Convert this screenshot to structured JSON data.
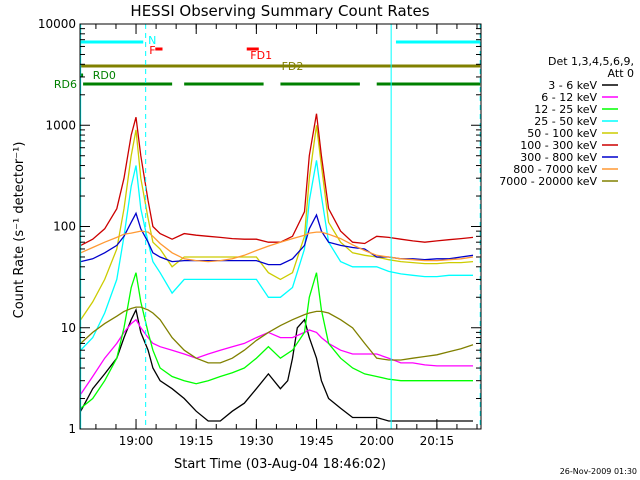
{
  "chart_data": {
    "type": "line",
    "title": "HESSI Observing Summary Count Rates",
    "xlabel": "Start Time (03-Aug-04 18:46:02)",
    "ylabel": "Count Rate (s⁻¹ detector⁻¹)",
    "footer": "26-Nov-2009 01:30",
    "yscale": "log",
    "ylim": [
      1,
      10000
    ],
    "xlim": [
      18.7672,
      20.4333
    ],
    "xtick_values": [
      19.0,
      19.25,
      19.5,
      19.75,
      20.0,
      20.25
    ],
    "x_ticks": [
      "19:00",
      "19:15",
      "19:30",
      "19:45",
      "20:00",
      "20:15"
    ],
    "y_tick_values": [
      1,
      10,
      100,
      1000,
      10000
    ],
    "y_ticks": [
      "1",
      "10",
      "100",
      "1000",
      "10000"
    ],
    "legend": {
      "header": [
        "Det 1,3,4,5,6,9,",
        "Att 0"
      ],
      "position": "top-right outside"
    },
    "series": [
      {
        "name": "3 - 6 keV",
        "color": "#000000",
        "x": [
          18.77,
          18.82,
          18.87,
          18.92,
          18.95,
          18.98,
          19.0,
          19.02,
          19.05,
          19.07,
          19.1,
          19.15,
          19.2,
          19.25,
          19.3,
          19.35,
          19.4,
          19.45,
          19.5,
          19.55,
          19.6,
          19.63,
          19.65,
          19.67,
          19.7,
          19.72,
          19.75,
          19.77,
          19.8,
          19.85,
          19.9,
          19.95,
          20.0,
          20.05,
          20.1,
          20.15,
          20.2,
          20.25,
          20.3,
          20.35,
          20.4
        ],
        "y": [
          1.5,
          2.5,
          3.5,
          5,
          8,
          12,
          15,
          9,
          6,
          4,
          3,
          2.5,
          2,
          1.5,
          1.2,
          1.2,
          1.5,
          1.8,
          2.5,
          3.5,
          2.5,
          3,
          5,
          10,
          12,
          8,
          5,
          3,
          2,
          1.6,
          1.3,
          1.3,
          1.3,
          1.2,
          1.2,
          1.2,
          1.2,
          1.2,
          1.2,
          1.2,
          1.2
        ]
      },
      {
        "name": "6 - 12 keV",
        "color": "#ff00ff",
        "x": [
          18.77,
          18.82,
          18.87,
          18.92,
          18.95,
          18.98,
          19.0,
          19.02,
          19.05,
          19.07,
          19.1,
          19.15,
          19.2,
          19.25,
          19.3,
          19.35,
          19.4,
          19.45,
          19.5,
          19.55,
          19.6,
          19.65,
          19.7,
          19.72,
          19.75,
          19.77,
          19.8,
          19.85,
          19.9,
          19.95,
          20.0,
          20.05,
          20.1,
          20.15,
          20.2,
          20.25,
          20.3,
          20.35,
          20.4
        ],
        "y": [
          2.2,
          3.3,
          5,
          7,
          9,
          11,
          12,
          10,
          8,
          7,
          6.5,
          6,
          5.5,
          5,
          5.5,
          6,
          6.5,
          7,
          8,
          9,
          8,
          8,
          9,
          9.5,
          9,
          8,
          7,
          6,
          5.5,
          5.5,
          5.5,
          5,
          4.5,
          4.5,
          4.3,
          4.2,
          4.2,
          4.2,
          4.2
        ]
      },
      {
        "name": "12 - 25 keV",
        "color": "#00ff00",
        "x": [
          18.77,
          18.82,
          18.87,
          18.92,
          18.95,
          18.98,
          19.0,
          19.02,
          19.05,
          19.07,
          19.1,
          19.15,
          19.2,
          19.25,
          19.3,
          19.35,
          19.4,
          19.45,
          19.5,
          19.55,
          19.6,
          19.65,
          19.7,
          19.72,
          19.75,
          19.77,
          19.8,
          19.85,
          19.9,
          19.95,
          20.0,
          20.05,
          20.1,
          20.15,
          20.2,
          20.25,
          20.3,
          20.35,
          20.4
        ],
        "y": [
          1.6,
          2,
          3,
          5,
          10,
          25,
          35,
          18,
          9,
          6,
          4,
          3.3,
          3,
          2.8,
          3,
          3.3,
          3.6,
          4,
          5,
          6.5,
          5,
          6,
          9,
          20,
          35,
          15,
          7,
          5,
          4,
          3.5,
          3.3,
          3.1,
          3,
          3,
          3,
          3,
          3,
          3,
          3
        ]
      },
      {
        "name": "25 - 50 keV",
        "color": "#00ffff",
        "x": [
          18.77,
          18.82,
          18.87,
          18.92,
          18.95,
          18.98,
          19.0,
          19.02,
          19.05,
          19.07,
          19.1,
          19.15,
          19.2,
          19.25,
          19.3,
          19.35,
          19.4,
          19.45,
          19.5,
          19.55,
          19.6,
          19.65,
          19.7,
          19.72,
          19.75,
          19.77,
          19.8,
          19.85,
          19.9,
          19.95,
          20.0,
          20.05,
          20.1,
          20.15,
          20.2,
          20.25,
          20.3,
          20.35,
          20.4
        ],
        "y": [
          6,
          8,
          14,
          30,
          80,
          250,
          400,
          150,
          70,
          45,
          35,
          22,
          30,
          30,
          30,
          30,
          30,
          30,
          30,
          20,
          20,
          25,
          60,
          180,
          450,
          200,
          70,
          45,
          40,
          40,
          40,
          36,
          34,
          33,
          32,
          32,
          33,
          33,
          33
        ]
      },
      {
        "name": "50 - 100 keV",
        "color": "#cccc00",
        "x": [
          18.77,
          18.82,
          18.87,
          18.92,
          18.95,
          18.98,
          19.0,
          19.02,
          19.05,
          19.07,
          19.1,
          19.15,
          19.2,
          19.25,
          19.3,
          19.35,
          19.4,
          19.45,
          19.5,
          19.55,
          19.6,
          19.65,
          19.7,
          19.72,
          19.75,
          19.77,
          19.8,
          19.85,
          19.9,
          19.95,
          20.0,
          20.05,
          20.1,
          20.15,
          20.2,
          20.25,
          20.3,
          20.35,
          20.4
        ],
        "y": [
          12,
          18,
          30,
          60,
          150,
          500,
          900,
          300,
          120,
          70,
          60,
          40,
          50,
          50,
          50,
          50,
          50,
          50,
          50,
          35,
          30,
          35,
          80,
          300,
          1000,
          400,
          110,
          70,
          55,
          52,
          50,
          47,
          45,
          44,
          43,
          43,
          44,
          44,
          45
        ]
      },
      {
        "name": "100 - 300 keV",
        "color": "#cc0000",
        "x": [
          18.77,
          18.82,
          18.87,
          18.92,
          18.95,
          18.98,
          19.0,
          19.02,
          19.05,
          19.07,
          19.1,
          19.15,
          19.2,
          19.25,
          19.3,
          19.35,
          19.4,
          19.45,
          19.5,
          19.55,
          19.6,
          19.65,
          19.7,
          19.72,
          19.75,
          19.77,
          19.8,
          19.85,
          19.9,
          19.95,
          20.0,
          20.05,
          20.1,
          20.15,
          20.2,
          20.25,
          20.3,
          20.35,
          20.4
        ],
        "y": [
          65,
          75,
          95,
          150,
          300,
          800,
          1200,
          500,
          180,
          100,
          85,
          75,
          85,
          82,
          80,
          78,
          76,
          75,
          75,
          70,
          70,
          80,
          140,
          500,
          1300,
          500,
          150,
          90,
          70,
          68,
          80,
          78,
          75,
          72,
          70,
          72,
          74,
          76,
          78
        ]
      },
      {
        "name": "300 - 800 keV",
        "color": "#0000cc",
        "x": [
          18.77,
          18.82,
          18.87,
          18.92,
          18.95,
          18.98,
          19.0,
          19.02,
          19.05,
          19.07,
          19.1,
          19.15,
          19.2,
          19.25,
          19.3,
          19.35,
          19.4,
          19.45,
          19.5,
          19.55,
          19.6,
          19.65,
          19.7,
          19.72,
          19.75,
          19.77,
          19.8,
          19.85,
          19.9,
          19.95,
          20.0,
          20.05,
          20.1,
          20.15,
          20.2,
          20.25,
          20.3,
          20.35,
          20.4
        ],
        "y": [
          45,
          48,
          55,
          65,
          80,
          110,
          135,
          95,
          70,
          55,
          50,
          45,
          46,
          46,
          46,
          46,
          46,
          46,
          46,
          42,
          42,
          48,
          65,
          95,
          130,
          90,
          70,
          65,
          62,
          60,
          50,
          50,
          48,
          48,
          47,
          48,
          48,
          50,
          52
        ]
      },
      {
        "name": "800 - 7000 keV",
        "color": "#ff9933",
        "x": [
          18.77,
          18.82,
          18.87,
          18.92,
          18.95,
          18.98,
          19.0,
          19.02,
          19.05,
          19.07,
          19.1,
          19.15,
          19.2,
          19.25,
          19.3,
          19.35,
          19.4,
          19.45,
          19.5,
          19.55,
          19.6,
          19.65,
          19.7,
          19.72,
          19.75,
          19.77,
          19.8,
          19.85,
          19.9,
          19.95,
          20.0,
          20.05,
          20.1,
          20.15,
          20.2,
          20.25,
          20.3,
          20.35,
          20.4
        ],
        "y": [
          55,
          62,
          70,
          78,
          84,
          86,
          88,
          90,
          88,
          80,
          68,
          55,
          48,
          46,
          45,
          46,
          48,
          52,
          58,
          64,
          70,
          76,
          82,
          86,
          88,
          88,
          84,
          76,
          66,
          58,
          52,
          50,
          48,
          47,
          46,
          46,
          47,
          48,
          50
        ]
      },
      {
        "name": "7000 - 20000 keV",
        "color": "#808000",
        "x": [
          18.77,
          18.82,
          18.87,
          18.92,
          18.95,
          18.98,
          19.0,
          19.02,
          19.05,
          19.07,
          19.1,
          19.15,
          19.2,
          19.25,
          19.3,
          19.35,
          19.4,
          19.45,
          19.5,
          19.55,
          19.6,
          19.65,
          19.7,
          19.72,
          19.75,
          19.77,
          19.8,
          19.85,
          19.9,
          19.95,
          20.0,
          20.05,
          20.1,
          20.15,
          20.2,
          20.25,
          20.3,
          20.35,
          20.4
        ],
        "y": [
          7,
          9,
          11,
          13,
          14.5,
          15.5,
          16,
          16,
          15,
          14,
          12,
          8,
          6,
          5,
          4.5,
          4.5,
          5,
          6,
          7.5,
          9,
          10.5,
          12,
          13.5,
          14,
          14.5,
          14.5,
          14,
          12,
          10,
          7,
          5,
          4.8,
          4.8,
          5,
          5.2,
          5.4,
          5.8,
          6.2,
          6.8
        ]
      }
    ],
    "flag_segments": [
      {
        "label": "N",
        "color": "#00ffff",
        "label_pos": "start",
        "segments": [
          [
            18.77,
            19.03
          ],
          [
            20.08,
            20.43
          ]
        ]
      },
      {
        "label": "F",
        "color": "#ff0000",
        "label_pos": "start",
        "segments": [
          [
            19.08,
            19.11
          ],
          [
            19.46,
            19.51
          ]
        ]
      },
      {
        "label": "FD1",
        "color": "#ff0000",
        "label_pos": "end",
        "segments": []
      },
      {
        "label": "FD2",
        "color": "#808000",
        "label_pos": "mid",
        "segments": [
          [
            18.77,
            20.43
          ]
        ]
      },
      {
        "label": "RD0",
        "color": "#008000",
        "label_pos": "start",
        "segments": [
          [
            18.77,
            18.78
          ]
        ]
      },
      {
        "label": "RD6",
        "color": "#008000",
        "label_pos": "before",
        "segments": [
          [
            18.78,
            19.15
          ],
          [
            19.2,
            19.53
          ],
          [
            19.6,
            19.93
          ],
          [
            20.0,
            20.43
          ]
        ]
      }
    ],
    "vertical_lines": [
      {
        "x": 18.77,
        "color": "#00ffff",
        "style": "solid"
      },
      {
        "x": 19.04,
        "color": "#00ffff",
        "style": "dashed"
      },
      {
        "x": 20.06,
        "color": "#00ffff",
        "style": "solid"
      },
      {
        "x": 20.43,
        "color": "#00ffff",
        "style": "dashed"
      }
    ]
  }
}
